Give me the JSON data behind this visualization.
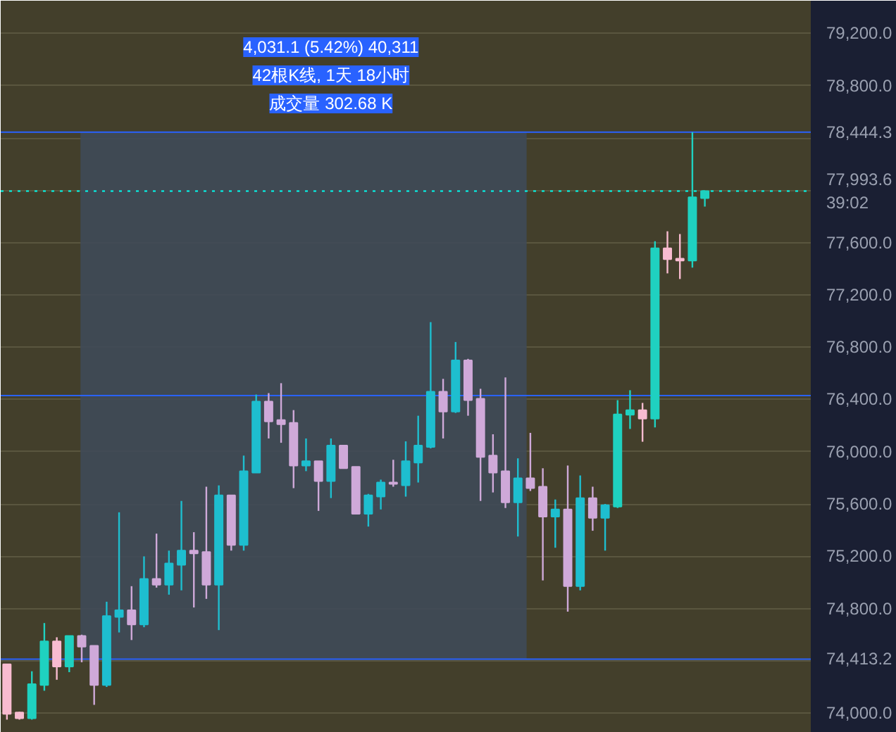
{
  "chart_data": {
    "type": "candlestick",
    "categories": [
      null,
      null,
      null,
      null,
      null,
      null,
      null,
      null,
      null,
      null,
      null,
      null,
      null,
      null,
      null,
      null,
      null,
      null,
      null,
      null,
      null,
      null,
      null,
      null,
      null,
      null,
      null,
      null,
      null,
      null,
      null,
      null,
      null,
      null,
      null,
      null,
      null,
      null,
      null,
      null,
      null,
      null,
      null,
      null,
      null,
      null,
      null,
      null,
      null,
      null,
      null,
      null,
      null,
      null,
      null,
      null,
      null,
      null,
      null,
      null,
      null,
      null,
      null,
      null,
      null
    ],
    "ohlc": [
      [
        74374,
        74374,
        73950,
        73994
      ],
      [
        74005,
        74010,
        73950,
        73960
      ],
      [
        73960,
        74320,
        73950,
        74222
      ],
      [
        74215,
        74689,
        74171,
        74548
      ],
      [
        74548,
        74580,
        74255,
        74356
      ],
      [
        74356,
        74591,
        74313,
        74591
      ],
      [
        74591,
        74600,
        74389,
        74508
      ],
      [
        74515,
        74515,
        74063,
        74215
      ],
      [
        74215,
        74852,
        74200,
        74743
      ],
      [
        74736,
        75536,
        74617,
        74787
      ],
      [
        74787,
        74971,
        74559,
        74678
      ],
      [
        74678,
        75199,
        74657,
        75026
      ],
      [
        75026,
        75373,
        74960,
        74982
      ],
      [
        74982,
        75243,
        74906,
        75145
      ],
      [
        75134,
        75623,
        74939,
        75243
      ],
      [
        75243,
        75384,
        74808,
        75222
      ],
      [
        75232,
        75732,
        74874,
        74982
      ],
      [
        74982,
        75742,
        74635,
        75666
      ],
      [
        75666,
        75666,
        75243,
        75286
      ],
      [
        75286,
        75970,
        75243,
        75851
      ],
      [
        75840,
        76437,
        75840,
        76383
      ],
      [
        76383,
        76448,
        76101,
        76231
      ],
      [
        76242,
        76524,
        76068,
        76210
      ],
      [
        76220,
        76318,
        75721,
        75894
      ],
      [
        75894,
        76101,
        75851,
        75927
      ],
      [
        75927,
        75927,
        75547,
        75775
      ],
      [
        75775,
        76101,
        75645,
        76047
      ],
      [
        76047,
        76047,
        75873,
        75873
      ],
      [
        75884,
        75884,
        75525,
        75525
      ],
      [
        75525,
        75677,
        75427,
        75666
      ],
      [
        75656,
        75786,
        75558,
        75764
      ],
      [
        75764,
        75938,
        75732,
        75753
      ],
      [
        75743,
        76079,
        75656,
        75927
      ],
      [
        75916,
        76275,
        75764,
        76047
      ],
      [
        76036,
        76991,
        76025,
        76459
      ],
      [
        76459,
        76557,
        76101,
        76307
      ],
      [
        76307,
        76839,
        76296,
        76698
      ],
      [
        76698,
        76710,
        76275,
        76394
      ],
      [
        76405,
        76481,
        75623,
        75960
      ],
      [
        75970,
        76133,
        75688,
        75840
      ],
      [
        75851,
        76568,
        75569,
        75612
      ],
      [
        75612,
        75949,
        75351,
        75797
      ],
      [
        75797,
        76144,
        75699,
        75721
      ],
      [
        75732,
        75873,
        75015,
        75503
      ],
      [
        75503,
        75634,
        75265,
        75558
      ],
      [
        75558,
        75894,
        74776,
        74971
      ],
      [
        74971,
        75818,
        74939,
        75645
      ],
      [
        75645,
        75732,
        75395,
        75493
      ],
      [
        75493,
        75600,
        75243,
        75590
      ],
      [
        75580,
        76394,
        75569,
        76285
      ],
      [
        76282,
        76470,
        76174,
        76318
      ],
      [
        76318,
        76373,
        76076,
        76253
      ],
      [
        76253,
        77610,
        76185,
        77556
      ],
      [
        77556,
        77686,
        77364,
        77473
      ],
      [
        77477,
        77665,
        77321,
        77462
      ],
      [
        77462,
        78444.3,
        77408,
        77947
      ],
      [
        77940,
        77993.6,
        77875,
        77993.6
      ],
      null,
      null,
      null,
      null,
      null,
      null,
      null,
      null
    ],
    "colors": [
      "#f8bbd0",
      "#f8bbd0",
      "#1fd1c0",
      "#1fd1c0",
      "#f8bbd0",
      "#1fd1c0",
      "#cfa9d9",
      "#cfa9d9",
      "#1ebecf",
      "#1ebecf",
      "#cfa9d9",
      "#1ebecf",
      "#cfa9d9",
      "#1ebecf",
      "#1ebecf",
      "#cfa9d9",
      "#cfa9d9",
      "#1ebecf",
      "#cfa9d9",
      "#1ebecf",
      "#1ebecf",
      "#cfa9d9",
      "#cfa9d9",
      "#cfa9d9",
      "#1ebecf",
      "#cfa9d9",
      "#1ebecf",
      "#cfa9d9",
      "#cfa9d9",
      "#1ebecf",
      "#1ebecf",
      "#cfa9d9",
      "#1ebecf",
      "#1ebecf",
      "#1ebecf",
      "#cfa9d9",
      "#1ebecf",
      "#cfa9d9",
      "#cfa9d9",
      "#cfa9d9",
      "#cfa9d9",
      "#1ebecf",
      "#cfa9d9",
      "#cfa9d9",
      "#1ebecf",
      "#cfa9d9",
      "#1ebecf",
      "#cfa9d9",
      "#1ebecf",
      "#1fd1c0",
      "#1fd1c0",
      "#f8bbd0",
      "#1fd1c0",
      "#f8bbd0",
      "#f8bbd0",
      "#1fd1c0",
      "#1fd1c0",
      null,
      null,
      null,
      null,
      null,
      null,
      null,
      null
    ],
    "ylim": [
      73850,
      79450
    ],
    "yticks": [
      {
        "value": 74000,
        "label": "74,000.0"
      },
      {
        "value": 74400,
        "label": null
      },
      {
        "value": 74800,
        "label": "74,800.0"
      },
      {
        "value": 75200,
        "label": "75,200.0"
      },
      {
        "value": 75600,
        "label": "75,600.0"
      },
      {
        "value": 76000,
        "label": "76,000.0"
      },
      {
        "value": 76400,
        "label": "76,400.0"
      },
      {
        "value": 76800,
        "label": "76,800.0"
      },
      {
        "value": 77200,
        "label": "77,200.0"
      },
      {
        "value": 77600,
        "label": "77,600.0"
      },
      {
        "value": 78000,
        "label": null
      },
      {
        "value": 78400,
        "label": null
      },
      {
        "value": 78800,
        "label": "78,800.0"
      },
      {
        "value": 79200,
        "label": "79,200.0"
      }
    ],
    "grid": "y",
    "bands": [
      {
        "axis": "y",
        "from": 74413.2,
        "to": 78444.3,
        "color": "#3f4a58"
      }
    ],
    "ref_lines": [
      {
        "axis": "y",
        "value": 77993.6,
        "label": "77,993.6\n39:02",
        "color": "#00fff0",
        "line_style": "dotted"
      },
      {
        "axis": "y",
        "value": 78444.3,
        "label": "78,444.3",
        "color": "#2962ff",
        "line_style": "solid"
      },
      {
        "axis": "y",
        "value": 74413.2,
        "label": "74,413.2",
        "color": "#2962ff",
        "line_style": "solid"
      },
      {
        "axis": "y",
        "value": 76428.75,
        "color": "#2962ff",
        "line_style": "solid"
      }
    ],
    "annotations": [
      "4,031.1 (5.42%) 40,311",
      "42根K线, 1天 18小时",
      "成交量 302.68 K"
    ]
  }
}
